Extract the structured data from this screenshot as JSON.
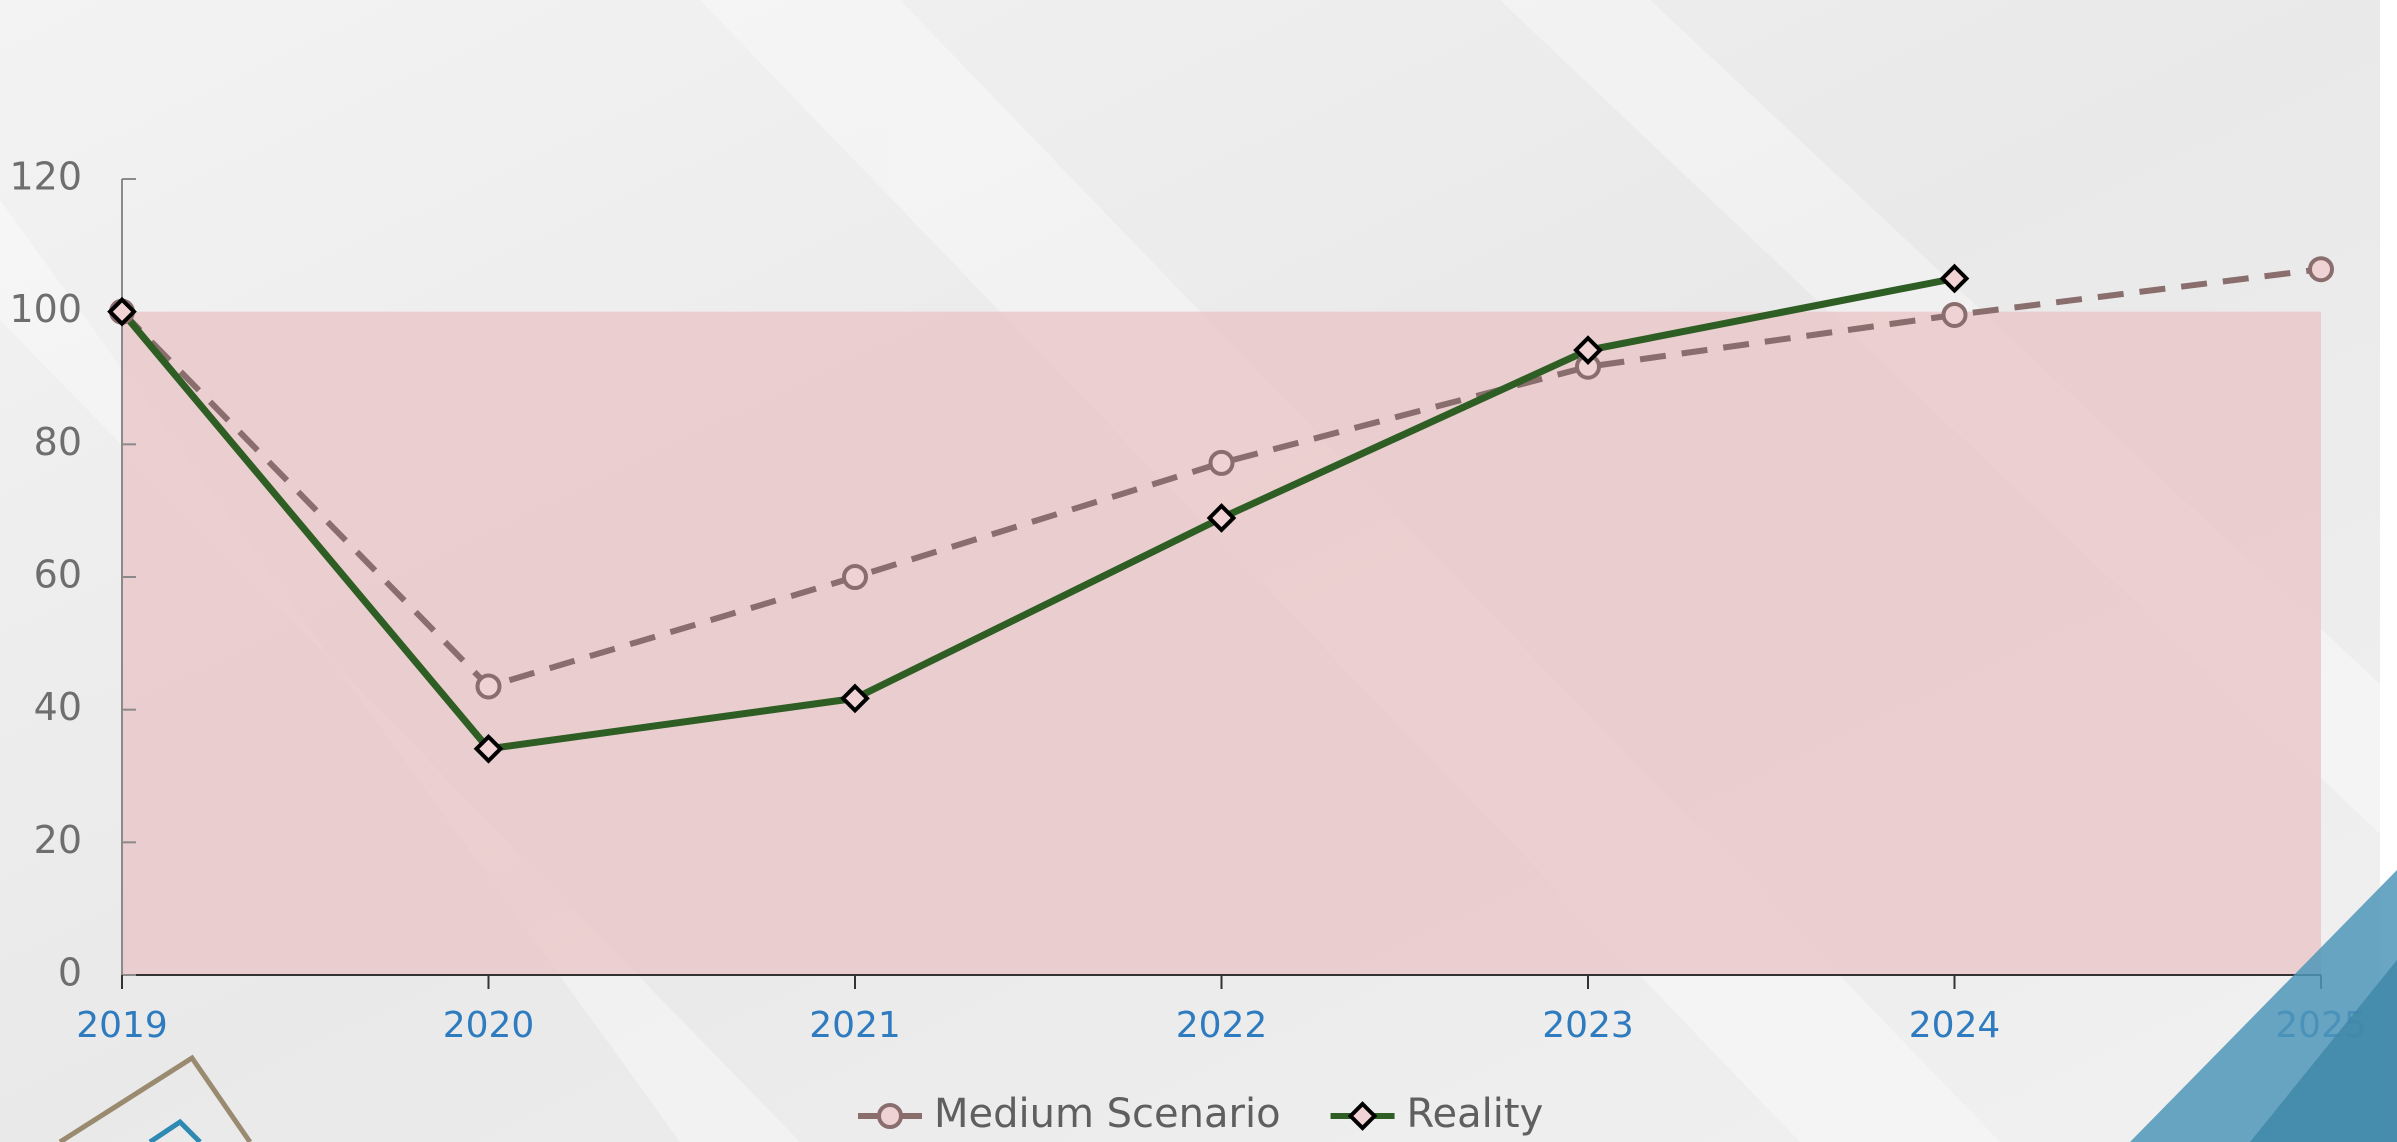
{
  "chart_data": {
    "type": "line",
    "categories": [
      "2019",
      "2020",
      "2021",
      "2022",
      "2023",
      "2024",
      "2025"
    ],
    "series": [
      {
        "name": "Medium Scenario",
        "color": "#8a6e6e",
        "dashed": true,
        "marker": "circle",
        "values": [
          100,
          43.5,
          60,
          77.2,
          91.7,
          99.5,
          106.4
        ]
      },
      {
        "name": "Reality",
        "color": "#2e5e24",
        "dashed": false,
        "marker": "diamond",
        "values": [
          100,
          34.1,
          41.7,
          68.9,
          94.2,
          105,
          null
        ]
      }
    ],
    "shaded_range": [
      0,
      100
    ],
    "shaded_color": "#e9c4c6",
    "ylim": [
      0,
      120
    ],
    "yticks": [
      0,
      20,
      40,
      60,
      80,
      100,
      120
    ],
    "grid": false,
    "legend": "bottom"
  }
}
